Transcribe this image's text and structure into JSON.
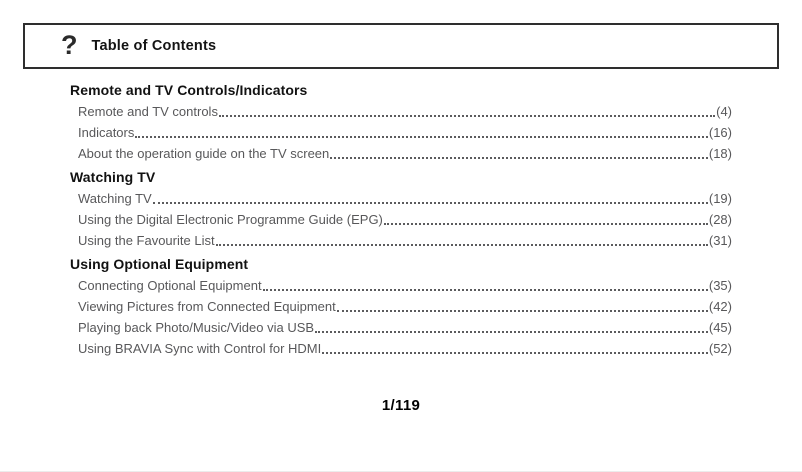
{
  "header": {
    "icon": "?",
    "title": "Table of Contents"
  },
  "sections": [
    {
      "title": "Remote and TV Controls/Indicators",
      "entries": [
        {
          "label": "Remote and TV controls",
          "page": "(4)"
        },
        {
          "label": "Indicators",
          "page": "(16)"
        },
        {
          "label": "About the operation guide on the TV screen",
          "page": "(18)"
        }
      ]
    },
    {
      "title": "Watching TV",
      "entries": [
        {
          "label": "Watching TV",
          "page": "(19)"
        },
        {
          "label": "Using the Digital Electronic Programme Guide (EPG)",
          "page": "(28)"
        },
        {
          "label": "Using the Favourite List",
          "page": "(31)"
        }
      ]
    },
    {
      "title": "Using Optional Equipment",
      "entries": [
        {
          "label": "Connecting Optional Equipment",
          "page": "(35)"
        },
        {
          "label": "Viewing Pictures from Connected Equipment",
          "page": "(42)"
        },
        {
          "label": "Playing back Photo/Music/Video via USB",
          "page": "(45)"
        },
        {
          "label": "Using BRAVIA Sync with Control for HDMI",
          "page": "(52)"
        }
      ]
    }
  ],
  "footer": {
    "page_indicator": "1/119"
  },
  "colors": {
    "heading": "#121212",
    "entry_text": "#58585a",
    "box_border": "#2e2e2e",
    "background": "#ffffff"
  }
}
